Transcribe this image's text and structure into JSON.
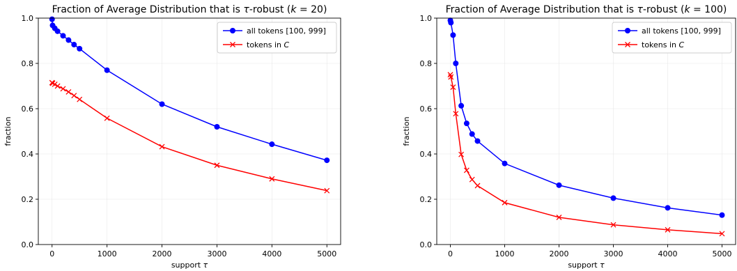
{
  "chart_data": [
    {
      "type": "line",
      "title": "Fraction of Average Distribution that is τ-robust (k = 20)",
      "title_parts": [
        {
          "t": "Fraction of Average Distribution that is "
        },
        {
          "t": "τ",
          "italic": true
        },
        {
          "t": "-robust ("
        },
        {
          "t": "k",
          "italic": true
        },
        {
          "t": " = 20)"
        }
      ],
      "xlabel": "support τ",
      "xlabel_parts": [
        {
          "t": "support "
        },
        {
          "t": "τ",
          "italic": true
        }
      ],
      "ylabel": "fraction",
      "xlim": [
        -250,
        5250
      ],
      "ylim": [
        0,
        1.0
      ],
      "xticks": [
        0,
        1000,
        2000,
        3000,
        4000,
        5000
      ],
      "xtick_labels": [
        "0",
        "1000",
        "2000",
        "3000",
        "4000",
        "5000"
      ],
      "yticks": [
        0.0,
        0.2,
        0.4,
        0.6,
        0.8,
        1.0
      ],
      "ytick_labels": [
        "0.0",
        "0.2",
        "0.4",
        "0.6",
        "0.8",
        "1.0"
      ],
      "grid": true,
      "legend_position": "top-right",
      "series": [
        {
          "name": "all tokens [100, 999]",
          "name_parts": [
            {
              "t": "all tokens "
            },
            {
              "t": "[100, 999]"
            }
          ],
          "color": "#0000ff",
          "marker": "circle",
          "x": [
            0,
            10,
            50,
            100,
            200,
            300,
            400,
            500,
            1000,
            2000,
            3000,
            4000,
            5000
          ],
          "y": [
            0.995,
            0.968,
            0.955,
            0.942,
            0.922,
            0.903,
            0.883,
            0.865,
            0.77,
            0.62,
            0.52,
            0.443,
            0.372
          ]
        },
        {
          "name": "tokens in C",
          "name_parts": [
            {
              "t": "tokens in "
            },
            {
              "t": "C",
              "italic": true
            }
          ],
          "color": "#ff0000",
          "marker": "x",
          "x": [
            0,
            10,
            50,
            100,
            200,
            300,
            400,
            500,
            1000,
            2000,
            3000,
            4000,
            5000
          ],
          "y": [
            0.715,
            0.712,
            0.708,
            0.7,
            0.688,
            0.674,
            0.658,
            0.641,
            0.558,
            0.432,
            0.35,
            0.29,
            0.238
          ]
        }
      ]
    },
    {
      "type": "line",
      "title": "Fraction of Average Distribution that is τ-robust (k = 100)",
      "title_parts": [
        {
          "t": "Fraction of Average Distribution that is "
        },
        {
          "t": "τ",
          "italic": true
        },
        {
          "t": "-robust ("
        },
        {
          "t": "k",
          "italic": true
        },
        {
          "t": " = 100)"
        }
      ],
      "xlabel": "support τ",
      "xlabel_parts": [
        {
          "t": "support "
        },
        {
          "t": "τ",
          "italic": true
        }
      ],
      "ylabel": "fraction",
      "xlim": [
        -250,
        5250
      ],
      "ylim": [
        0,
        1.0
      ],
      "xticks": [
        0,
        1000,
        2000,
        3000,
        4000,
        5000
      ],
      "xtick_labels": [
        "0",
        "1000",
        "2000",
        "3000",
        "4000",
        "5000"
      ],
      "yticks": [
        0.0,
        0.2,
        0.4,
        0.6,
        0.8,
        1.0
      ],
      "ytick_labels": [
        "0.0",
        "0.2",
        "0.4",
        "0.6",
        "0.8",
        "1.0"
      ],
      "grid": true,
      "legend_position": "top-right",
      "series": [
        {
          "name": "all tokens [100, 999]",
          "name_parts": [
            {
              "t": "all tokens "
            },
            {
              "t": "[100, 999]"
            }
          ],
          "color": "#0000ff",
          "marker": "circle",
          "x": [
            0,
            10,
            50,
            100,
            200,
            300,
            400,
            500,
            1000,
            2000,
            3000,
            4000,
            5000
          ],
          "y": [
            0.99,
            0.98,
            0.925,
            0.8,
            0.613,
            0.535,
            0.488,
            0.457,
            0.358,
            0.262,
            0.205,
            0.162,
            0.13
          ]
        },
        {
          "name": "tokens in C",
          "name_parts": [
            {
              "t": "tokens in "
            },
            {
              "t": "C",
              "italic": true
            }
          ],
          "color": "#ff0000",
          "marker": "x",
          "x": [
            0,
            10,
            50,
            100,
            200,
            300,
            400,
            500,
            1000,
            2000,
            3000,
            4000,
            5000
          ],
          "y": [
            0.75,
            0.74,
            0.695,
            0.578,
            0.398,
            0.328,
            0.287,
            0.26,
            0.185,
            0.12,
            0.087,
            0.065,
            0.048
          ]
        }
      ]
    }
  ]
}
